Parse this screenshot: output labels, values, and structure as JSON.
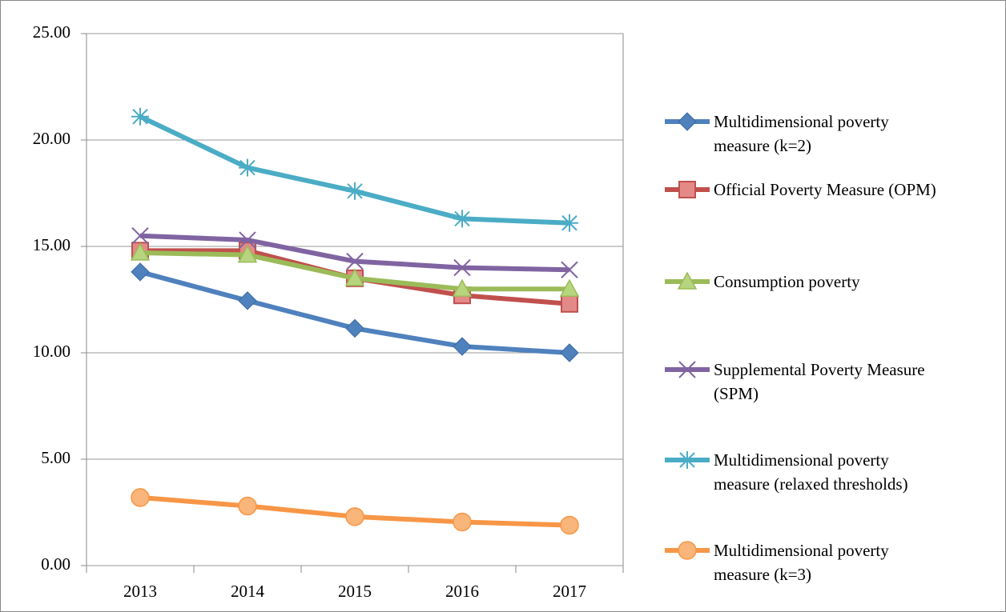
{
  "chart_data": {
    "type": "line",
    "categories": [
      "2013",
      "2014",
      "2015",
      "2016",
      "2017"
    ],
    "ylim": [
      0,
      25
    ],
    "yticks": [
      {
        "value": 0,
        "label": "0.00"
      },
      {
        "value": 5,
        "label": "5.00"
      },
      {
        "value": 10,
        "label": "10.00"
      },
      {
        "value": 15,
        "label": "15.00"
      },
      {
        "value": 20,
        "label": "20.00"
      },
      {
        "value": 25,
        "label": "25.00"
      }
    ],
    "grid": true,
    "legend": "right",
    "series": [
      {
        "name": "Multidimensional poverty measure (k=2)",
        "color": "#4f81bd",
        "marker": "diamond",
        "values": [
          13.8,
          12.45,
          11.15,
          10.3,
          10.0
        ]
      },
      {
        "name": "Official Poverty Measure (OPM)",
        "color": "#c0504d",
        "marker": "square",
        "values": [
          14.8,
          14.8,
          13.5,
          12.7,
          12.3
        ]
      },
      {
        "name": "Consumption poverty",
        "color": "#9bbb59",
        "marker": "triangle",
        "values": [
          14.7,
          14.6,
          13.5,
          13.0,
          13.0
        ]
      },
      {
        "name": "Supplemental Poverty Measure (SPM)",
        "color": "#8064a2",
        "marker": "x",
        "values": [
          15.5,
          15.3,
          14.3,
          14.0,
          13.9
        ]
      },
      {
        "name": "Multidimensional poverty measure (relaxed thresholds)",
        "color": "#4bacc6",
        "marker": "star",
        "values": [
          21.1,
          18.7,
          17.6,
          16.3,
          16.1
        ]
      },
      {
        "name": "Multidimensional poverty measure (k=3)",
        "color": "#f79646",
        "marker": "circle",
        "values": [
          3.2,
          2.8,
          2.3,
          2.05,
          1.9
        ]
      }
    ]
  }
}
